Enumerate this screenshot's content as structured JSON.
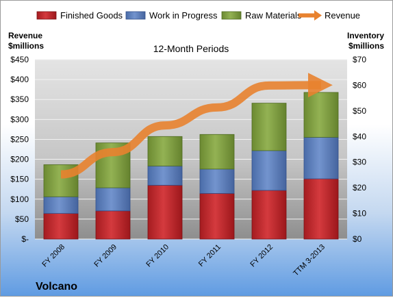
{
  "chart_data": {
    "type": "bar",
    "subtitle": "12-Month Periods",
    "company": "Volcano",
    "left_axis_label": [
      "Revenue",
      "$millions"
    ],
    "right_axis_label": [
      "Inventory",
      "$millions"
    ],
    "categories": [
      "FY 2008",
      "FY 2009",
      "FY 2010",
      "FY 2011",
      "FY 2012",
      "TTM 3-2013"
    ],
    "left_ticks": [
      "$-",
      "$50",
      "$100",
      "$150",
      "$200",
      "$250",
      "$300",
      "$350",
      "$400",
      "$450"
    ],
    "right_ticks": [
      "$0",
      "$10",
      "$20",
      "$30",
      "$40",
      "$50",
      "$60",
      "$70"
    ],
    "left_ylim": [
      0,
      450
    ],
    "right_ylim": [
      0,
      70
    ],
    "legend": [
      "Finished Goods",
      "Work in Progress",
      "Raw Materials",
      "Revenue"
    ],
    "series": [
      {
        "name": "Finished Goods",
        "axis": "right",
        "kind": "bar",
        "color": "#C0282D",
        "values": [
          10.0,
          11.0,
          21.0,
          17.8,
          19.0,
          23.5
        ]
      },
      {
        "name": "Work in Progress",
        "axis": "right",
        "kind": "bar",
        "color": "#5B7FC0",
        "values": [
          6.5,
          9.0,
          7.5,
          9.5,
          15.5,
          16.2
        ]
      },
      {
        "name": "Raw Materials",
        "axis": "right",
        "kind": "bar",
        "color": "#7E9E3D",
        "values": [
          12.5,
          17.5,
          11.5,
          13.5,
          18.5,
          17.5
        ]
      },
      {
        "name": "Revenue",
        "axis": "left",
        "kind": "line",
        "color": "#E8822F",
        "values": [
          162,
          218,
          285,
          330,
          385,
          386
        ]
      }
    ]
  }
}
